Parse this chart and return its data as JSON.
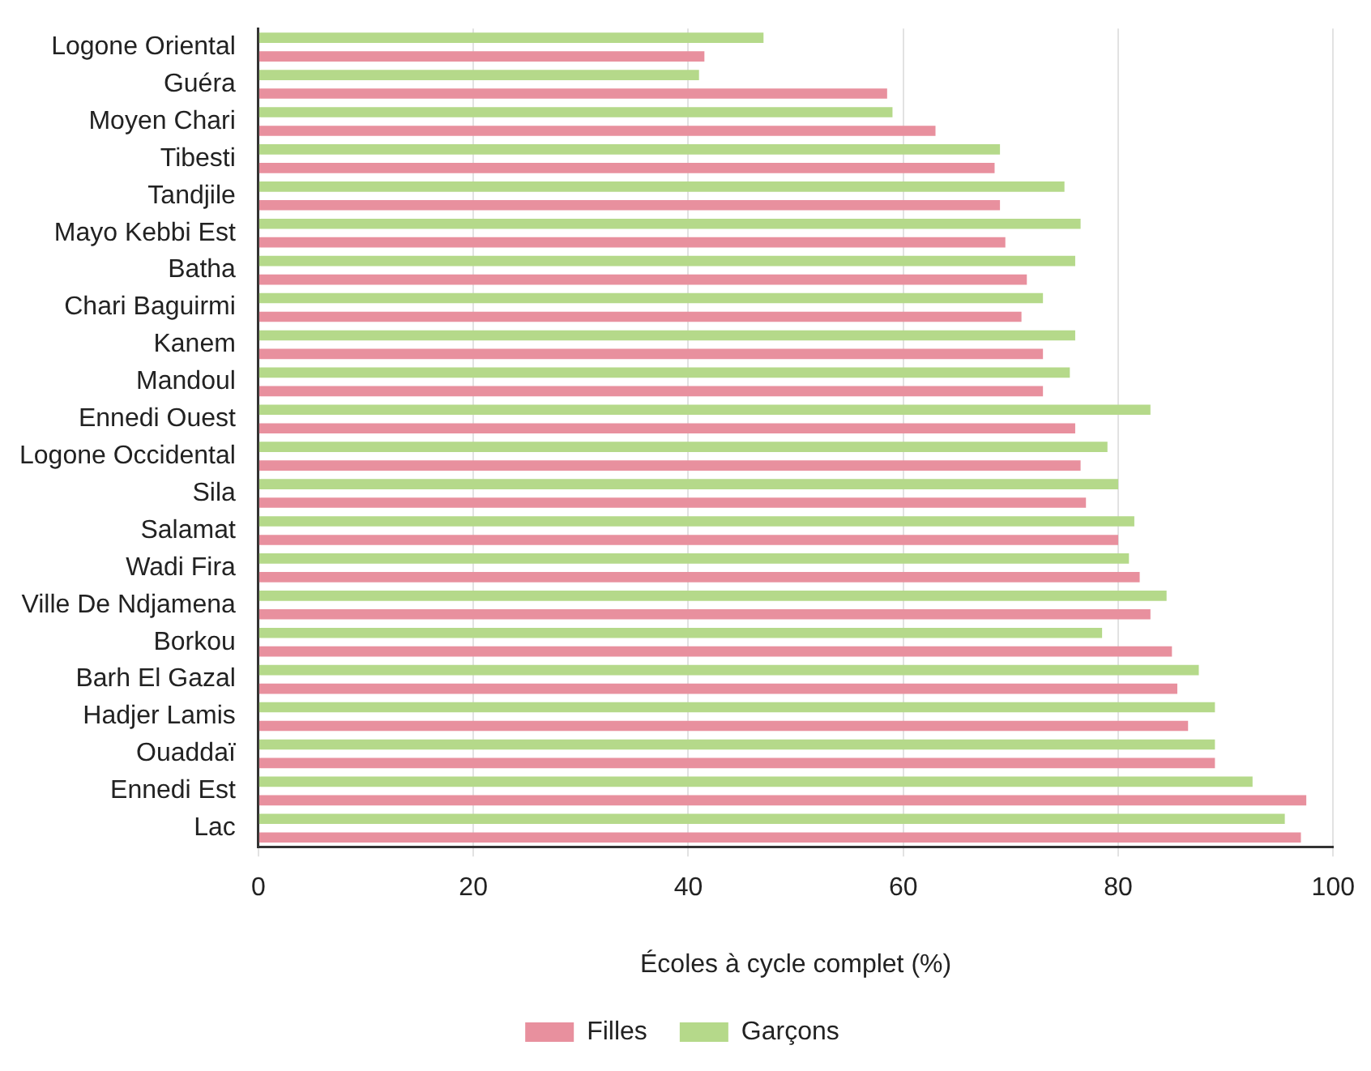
{
  "chart_data": {
    "type": "bar",
    "orientation": "horizontal",
    "xlabel": "Écoles à cycle complet (%)",
    "categories": [
      "Logone Oriental",
      "Guéra",
      "Moyen Chari",
      "Tibesti",
      "Tandjile",
      "Mayo Kebbi Est",
      "Batha",
      "Chari Baguirmi",
      "Kanem",
      "Mandoul",
      "Ennedi Ouest",
      "Logone Occidental",
      "Sila",
      "Salamat",
      "Wadi Fira",
      "Ville De Ndjamena",
      "Borkou",
      "Barh El Gazal",
      "Hadjer Lamis",
      "Ouaddaï",
      "Ennedi Est",
      "Lac"
    ],
    "series": [
      {
        "name": "Garçons",
        "color": "#b5d98a",
        "values": [
          47,
          41,
          59,
          69,
          75,
          76.5,
          76,
          73,
          76,
          75.5,
          83,
          79,
          80,
          81.5,
          81,
          84.5,
          78.5,
          87.5,
          89,
          89,
          92.5,
          95.5
        ]
      },
      {
        "name": "Filles",
        "color": "#e8909e",
        "values": [
          41.5,
          58.5,
          63,
          68.5,
          69,
          69.5,
          71.5,
          71,
          73,
          73,
          76,
          76.5,
          77,
          80,
          82,
          83,
          85,
          85.5,
          86.5,
          89,
          97.5,
          97
        ]
      }
    ],
    "xlim": [
      0,
      100
    ],
    "xticks": [
      0,
      20,
      40,
      60,
      80,
      100
    ],
    "grid": "x",
    "legend": "bottom"
  }
}
